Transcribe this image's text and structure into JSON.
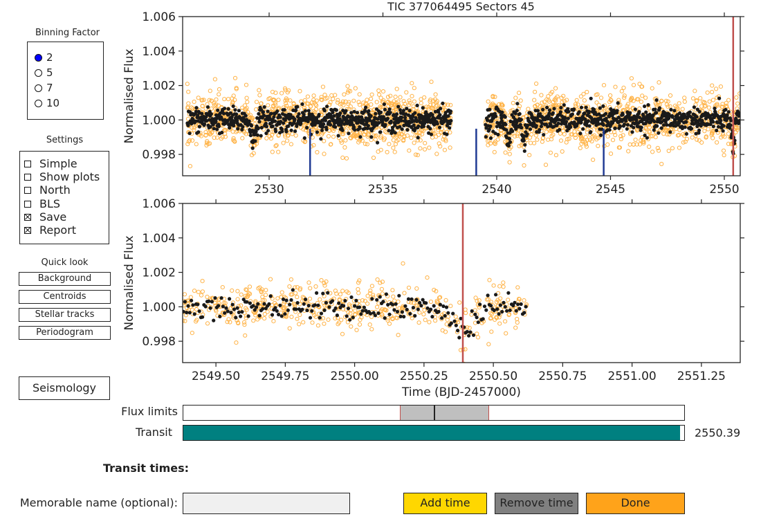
{
  "plot_title": "TIC 377064495    Sectors 45",
  "binning": {
    "title": "Binning Factor",
    "options": [
      "2",
      "5",
      "7",
      "10"
    ],
    "selected": "2"
  },
  "settings": {
    "title": "Settings",
    "items": [
      {
        "label": "Simple",
        "checked": false
      },
      {
        "label": "Show plots",
        "checked": false
      },
      {
        "label": "North",
        "checked": false
      },
      {
        "label": "BLS",
        "checked": false
      },
      {
        "label": "Save",
        "checked": true
      },
      {
        "label": "Report",
        "checked": true
      }
    ]
  },
  "quick_look": {
    "title": "Quick look",
    "buttons": [
      "Background",
      "Centroids",
      "Stellar tracks",
      "Periodogram"
    ]
  },
  "seismology_label": "Seismology",
  "sliders": {
    "flux_limits_label": "Flux limits",
    "transit_label": "Transit",
    "transit_value": "2550.39",
    "transit_fraction": 0.992,
    "flux_low_fraction": 0.432,
    "flux_mid_fraction": 0.5,
    "flux_high_fraction": 0.608
  },
  "transit_times_label": "Transit times:",
  "memorable_label": "Memorable name (optional):",
  "memorable_value": "",
  "buttons": {
    "add": "Add time",
    "remove": "Remove time",
    "done": "Done"
  },
  "colors": {
    "raw": "#ffb347",
    "binned": "#1a1a1a",
    "marker": "#c0504d",
    "transit_tick": "#1f3a93",
    "slider_fill": "#008080",
    "add_btn": "#ffd700",
    "remove_btn": "#808080",
    "done_btn": "#ffa31a",
    "radio_on": "#0000ff"
  },
  "chart_data": [
    {
      "type": "scatter",
      "title": "TIC 377064495    Sectors 45",
      "xlabel": "",
      "ylabel": "Normalised Flux",
      "xlim": [
        2526.2,
        2550.7
      ],
      "ylim": [
        0.99676,
        1.006
      ],
      "xticks": [
        2530,
        2535,
        2540,
        2545,
        2550
      ],
      "xtick_labels": [
        "2530",
        "2535",
        "2540",
        "2545",
        "2550"
      ],
      "yticks": [
        0.998,
        1.0,
        1.002,
        1.004,
        1.006
      ],
      "ytick_labels": [
        "0.998",
        "1.000",
        "1.002",
        "1.004",
        "1.006"
      ],
      "segments": [
        [
          2526.4,
          2538.0
        ],
        [
          2539.5,
          2550.7
        ]
      ],
      "raw_scatter": 0.0011,
      "bin_scatter": 0.00035,
      "dips": [
        2529.3,
        2540.5,
        2541.2
      ],
      "transit_ticks": [
        2531.8,
        2539.1,
        2544.7
      ],
      "marker_x": 2550.39
    },
    {
      "type": "scatter",
      "xlabel": "Time (BJD-2457000)",
      "ylabel": "Normalised Flux",
      "xlim": [
        2549.38,
        2551.39
      ],
      "ylim": [
        0.99676,
        1.006
      ],
      "xticks": [
        2549.5,
        2549.75,
        2550.0,
        2550.25,
        2550.5,
        2550.75,
        2551.0,
        2551.25
      ],
      "xtick_labels": [
        "2549.50",
        "2549.75",
        "2550.00",
        "2550.25",
        "2550.50",
        "2550.75",
        "2551.00",
        "2551.25"
      ],
      "yticks": [
        0.998,
        1.0,
        1.002,
        1.004,
        1.006
      ],
      "ytick_labels": [
        "0.998",
        "1.000",
        "1.002",
        "1.004",
        "1.006"
      ],
      "segments": [
        [
          2549.38,
          2550.62
        ]
      ],
      "raw_scatter": 0.00095,
      "bin_scatter": 0.00035,
      "dip_center": 2550.39,
      "dip_depth": 0.0013,
      "marker_x": 2550.39
    }
  ]
}
